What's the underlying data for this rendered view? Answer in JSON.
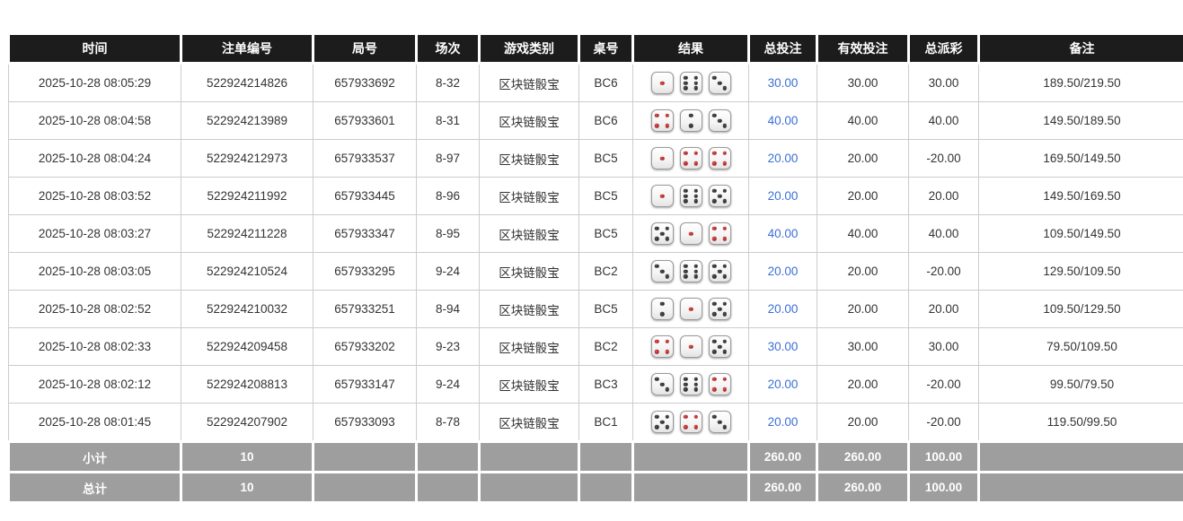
{
  "table": {
    "columns": [
      {
        "key": "time",
        "label": "时间"
      },
      {
        "key": "bet_no",
        "label": "注单编号"
      },
      {
        "key": "round_no",
        "label": "局号"
      },
      {
        "key": "session",
        "label": "场次"
      },
      {
        "key": "game_type",
        "label": "游戏类别"
      },
      {
        "key": "table_no",
        "label": "桌号"
      },
      {
        "key": "result",
        "label": "结果"
      },
      {
        "key": "total_bet",
        "label": "总投注"
      },
      {
        "key": "valid_bet",
        "label": "有效投注"
      },
      {
        "key": "payout",
        "label": "总派彩"
      },
      {
        "key": "remark",
        "label": "备注"
      }
    ],
    "rows": [
      {
        "time": "2025-10-28 08:05:29",
        "bet_no": "522924214826",
        "round_no": "657933692",
        "session": "8-32",
        "game_type": "区块链骰宝",
        "table_no": "BC6",
        "dice": [
          1,
          6,
          3
        ],
        "total_bet": "30.00",
        "valid_bet": "30.00",
        "payout": "30.00",
        "remark": "189.50/219.50"
      },
      {
        "time": "2025-10-28 08:04:58",
        "bet_no": "522924213989",
        "round_no": "657933601",
        "session": "8-31",
        "game_type": "区块链骰宝",
        "table_no": "BC6",
        "dice": [
          4,
          2,
          3
        ],
        "total_bet": "40.00",
        "valid_bet": "40.00",
        "payout": "40.00",
        "remark": "149.50/189.50"
      },
      {
        "time": "2025-10-28 08:04:24",
        "bet_no": "522924212973",
        "round_no": "657933537",
        "session": "8-97",
        "game_type": "区块链骰宝",
        "table_no": "BC5",
        "dice": [
          1,
          4,
          4
        ],
        "total_bet": "20.00",
        "valid_bet": "20.00",
        "payout": "-20.00",
        "remark": "169.50/149.50"
      },
      {
        "time": "2025-10-28 08:03:52",
        "bet_no": "522924211992",
        "round_no": "657933445",
        "session": "8-96",
        "game_type": "区块链骰宝",
        "table_no": "BC5",
        "dice": [
          1,
          6,
          5
        ],
        "total_bet": "20.00",
        "valid_bet": "20.00",
        "payout": "20.00",
        "remark": "149.50/169.50"
      },
      {
        "time": "2025-10-28 08:03:27",
        "bet_no": "522924211228",
        "round_no": "657933347",
        "session": "8-95",
        "game_type": "区块链骰宝",
        "table_no": "BC5",
        "dice": [
          5,
          1,
          4
        ],
        "total_bet": "40.00",
        "valid_bet": "40.00",
        "payout": "40.00",
        "remark": "109.50/149.50"
      },
      {
        "time": "2025-10-28 08:03:05",
        "bet_no": "522924210524",
        "round_no": "657933295",
        "session": "9-24",
        "game_type": "区块链骰宝",
        "table_no": "BC2",
        "dice": [
          3,
          6,
          5
        ],
        "total_bet": "20.00",
        "valid_bet": "20.00",
        "payout": "-20.00",
        "remark": "129.50/109.50"
      },
      {
        "time": "2025-10-28 08:02:52",
        "bet_no": "522924210032",
        "round_no": "657933251",
        "session": "8-94",
        "game_type": "区块链骰宝",
        "table_no": "BC5",
        "dice": [
          2,
          1,
          5
        ],
        "total_bet": "20.00",
        "valid_bet": "20.00",
        "payout": "20.00",
        "remark": "109.50/129.50"
      },
      {
        "time": "2025-10-28 08:02:33",
        "bet_no": "522924209458",
        "round_no": "657933202",
        "session": "9-23",
        "game_type": "区块链骰宝",
        "table_no": "BC2",
        "dice": [
          4,
          1,
          5
        ],
        "total_bet": "30.00",
        "valid_bet": "30.00",
        "payout": "30.00",
        "remark": "79.50/109.50"
      },
      {
        "time": "2025-10-28 08:02:12",
        "bet_no": "522924208813",
        "round_no": "657933147",
        "session": "9-24",
        "game_type": "区块链骰宝",
        "table_no": "BC3",
        "dice": [
          3,
          6,
          4
        ],
        "total_bet": "20.00",
        "valid_bet": "20.00",
        "payout": "-20.00",
        "remark": "99.50/79.50"
      },
      {
        "time": "2025-10-28 08:01:45",
        "bet_no": "522924207902",
        "round_no": "657933093",
        "session": "8-78",
        "game_type": "区块链骰宝",
        "table_no": "BC1",
        "dice": [
          5,
          4,
          3
        ],
        "total_bet": "20.00",
        "valid_bet": "20.00",
        "payout": "-20.00",
        "remark": "119.50/99.50"
      }
    ],
    "subtotal": {
      "label": "小计",
      "count": "10",
      "total_bet": "260.00",
      "valid_bet": "260.00",
      "payout": "100.00"
    },
    "total": {
      "label": "总计",
      "count": "10",
      "total_bet": "260.00",
      "valid_bet": "260.00",
      "payout": "100.00"
    }
  },
  "dice_red_pip_values": [
    1,
    4
  ],
  "colors": {
    "header_bg": "#1c1c1c",
    "header_text": "#ffffff",
    "row_border": "#cccccc",
    "body_text": "#333333",
    "total_bet_blue": "#3a6fd8",
    "negative_red": "#e03a3a",
    "summary_bg": "#9e9e9e",
    "summary_text": "#ffffff",
    "die_pip_black": "#222222",
    "die_pip_red": "#b91111"
  }
}
